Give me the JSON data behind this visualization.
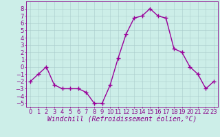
{
  "x": [
    0,
    1,
    2,
    3,
    4,
    5,
    6,
    7,
    8,
    9,
    10,
    11,
    12,
    13,
    14,
    15,
    16,
    17,
    18,
    19,
    20,
    21,
    22,
    23
  ],
  "y": [
    -2,
    -1,
    0,
    -2.5,
    -3,
    -3,
    -3,
    -3.5,
    -5,
    -5,
    -2.5,
    1.2,
    4.5,
    6.7,
    7,
    8,
    7,
    6.7,
    2.5,
    2,
    0,
    -1,
    -3,
    -2
  ],
  "line_color": "#990099",
  "marker_color": "#990099",
  "bg_color": "#cceee8",
  "grid_color": "#aacccc",
  "xlabel": "Windchill (Refroidissement éolien,°C)",
  "ylim": [
    -5.5,
    9.0
  ],
  "xlim": [
    -0.5,
    23.5
  ],
  "yticks": [
    -5,
    -4,
    -3,
    -2,
    -1,
    0,
    1,
    2,
    3,
    4,
    5,
    6,
    7,
    8
  ],
  "xticks": [
    0,
    1,
    2,
    3,
    4,
    5,
    6,
    7,
    8,
    9,
    10,
    11,
    12,
    13,
    14,
    15,
    16,
    17,
    18,
    19,
    20,
    21,
    22,
    23
  ],
  "tick_color": "#880088",
  "font_size": 6.0,
  "xlabel_font_size": 7.0,
  "marker_size": 4,
  "line_width": 1.0
}
